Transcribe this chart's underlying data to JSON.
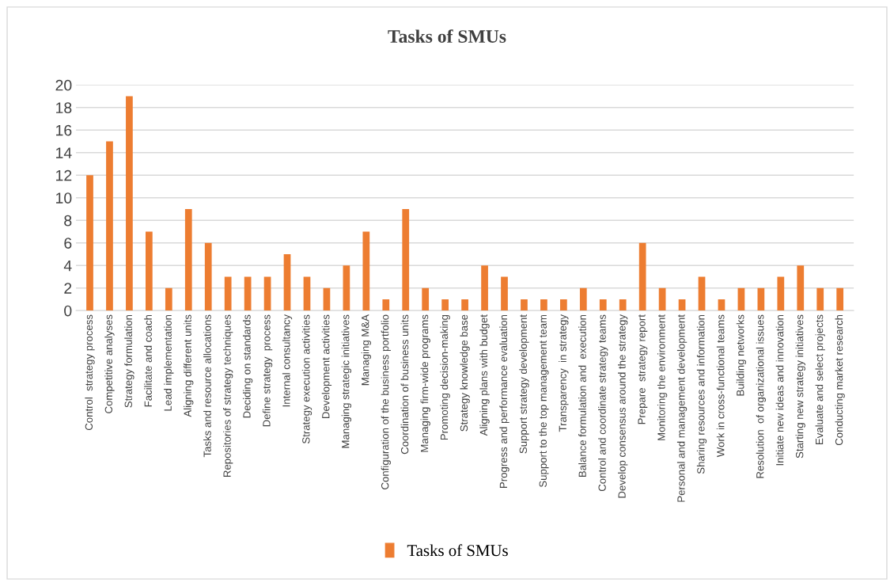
{
  "chart_data": {
    "type": "bar",
    "title": "Tasks of SMUs",
    "categories": [
      "Control  strategy process",
      "Competitive analyses",
      "Strategy formulation",
      "Facilitate and coach",
      "Lead implementation",
      "Aligning different units",
      "Tasks and resource allocations",
      "Repositories of strategy techniques",
      "Deciding on standards",
      "Define strategy  process",
      "Internal consultancy",
      "Strategy execution activities",
      "Development activities",
      "Managing strategic initiatives",
      "Managing M&A",
      "Configuration of the business portfolio",
      "Coordination of business units",
      "Managing firm-wide programs",
      "Promoting decision-making",
      "Strategy knowledge base",
      "Aligning plans with budget",
      "Progress and performance evaluation",
      "Support strategy development",
      "Support to the top management team",
      "Transparency  in strategy",
      "Balance formulation and  execution",
      "Control and coordinate strategy teams",
      "Develop consensus around the strategy",
      "Prepare  strategy report",
      "Monitoring the environment",
      "Personal and management development",
      "Sharing resources and information",
      "Work in cross-functional teams",
      "Building networks",
      "Resolution  of organizational issues",
      "Initiate new ideas and innovation",
      "Starting new strategy initiatives",
      "Evaluate and select projects",
      "Conducting market research"
    ],
    "series": [
      {
        "name": "Tasks of SMUs",
        "color": "#ed7d31",
        "values": [
          12,
          15,
          19,
          7,
          2,
          9,
          6,
          3,
          3,
          3,
          5,
          3,
          2,
          4,
          7,
          1,
          9,
          2,
          1,
          1,
          4,
          3,
          1,
          1,
          1,
          2,
          1,
          1,
          6,
          2,
          1,
          3,
          1,
          2,
          2,
          3,
          4,
          2,
          2
        ]
      }
    ],
    "ylim": [
      0,
      20
    ],
    "yticks": [
      0,
      2,
      4,
      6,
      8,
      10,
      12,
      14,
      16,
      18,
      20
    ],
    "grid": "y",
    "legend": "bottom"
  }
}
